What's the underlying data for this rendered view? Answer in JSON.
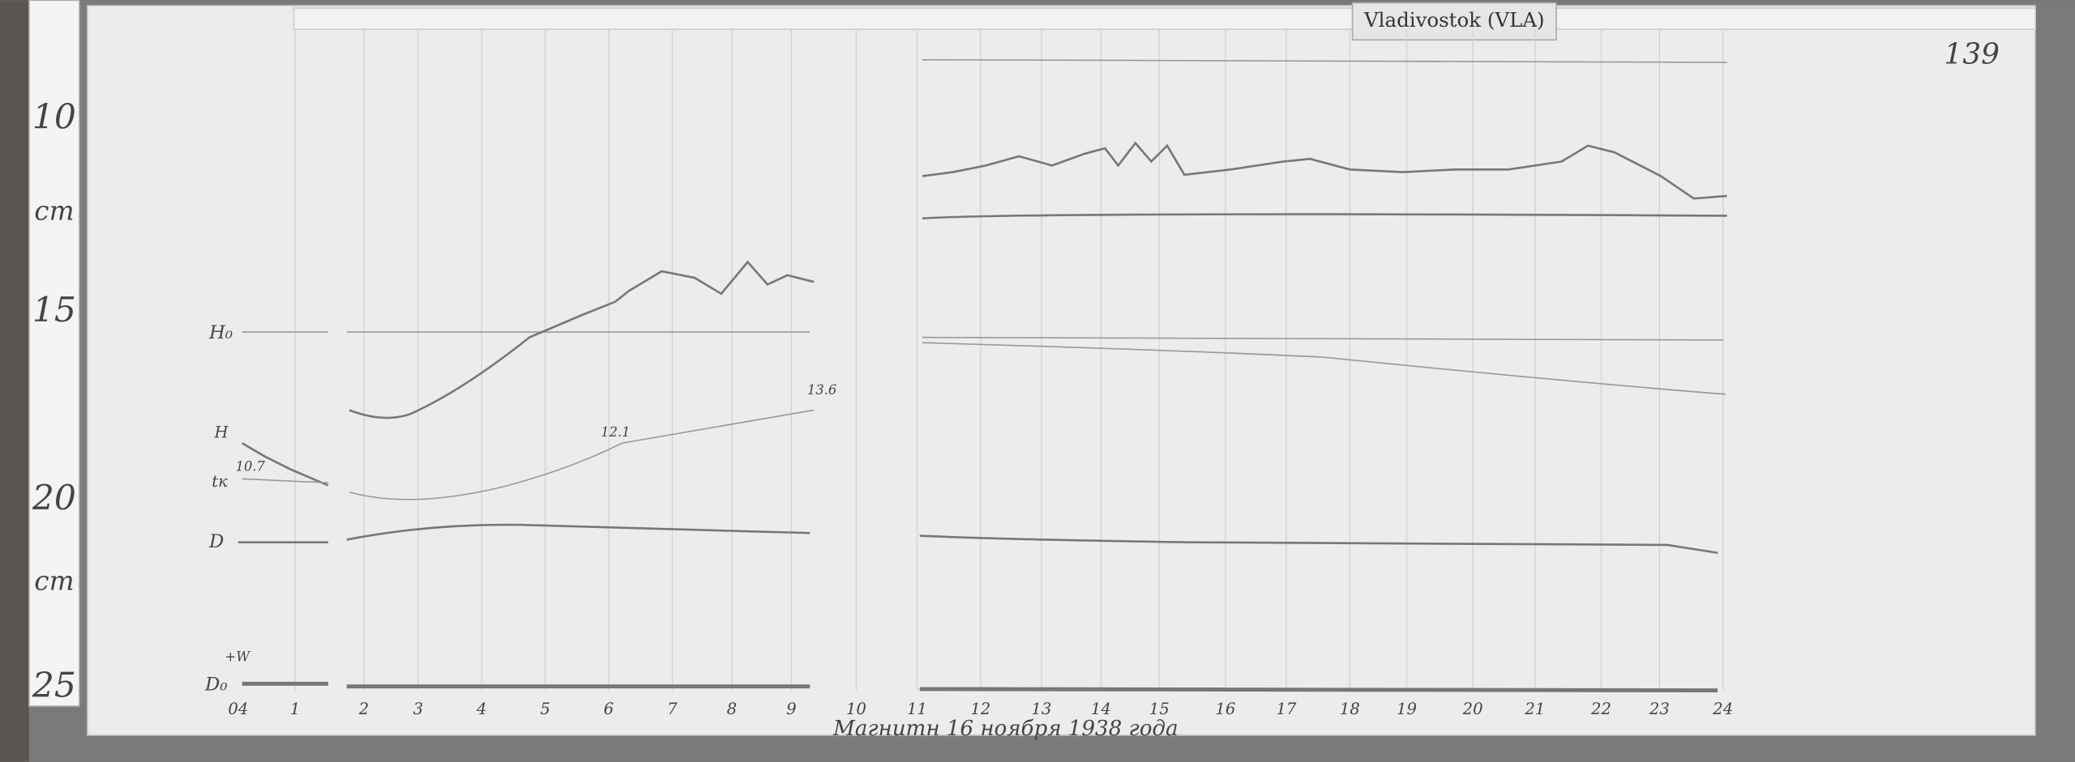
{
  "header": {
    "station": "Vladivostok (VLA)",
    "sheet_number": "139"
  },
  "ruler": [
    "10",
    "cm",
    "15",
    "20",
    "cm",
    "25"
  ],
  "trace_labels": [
    "H₀",
    "H",
    "tк",
    "D",
    "D₀",
    "+W"
  ],
  "annotations": [
    "10.7",
    "12.1",
    "13.6"
  ],
  "hours": [
    "04",
    "1",
    "2",
    "3",
    "4",
    "5",
    "6",
    "7",
    "8",
    "9",
    "10",
    "11",
    "12",
    "13",
    "14",
    "15",
    "16",
    "17",
    "18",
    "19",
    "20",
    "21",
    "22",
    "23",
    "24"
  ],
  "caption": "Магнитн 16 ноября 1938 года"
}
